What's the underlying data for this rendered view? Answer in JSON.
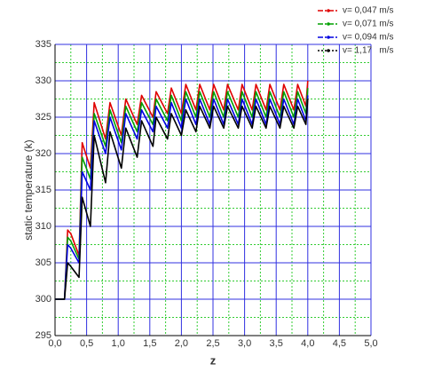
{
  "chart_data": {
    "type": "line",
    "ylabel": "static temperature (k)",
    "xlabel": "z",
    "x": [
      0,
      0.15,
      0.2,
      0.25,
      0.38,
      0.43,
      0.56,
      0.62,
      0.8,
      0.87,
      1.05,
      1.12,
      1.3,
      1.37,
      1.55,
      1.6,
      1.78,
      1.84,
      2.0,
      2.07,
      2.23,
      2.29,
      2.45,
      2.51,
      2.67,
      2.73,
      2.9,
      2.96,
      3.12,
      3.18,
      3.34,
      3.4,
      3.56,
      3.62,
      3.78,
      3.84,
      3.97,
      4.0
    ],
    "series": [
      {
        "name": "v= 0,047 m/s",
        "color": "#e00000",
        "values": [
          300,
          300,
          309.5,
          309,
          306,
          321.5,
          318,
          327,
          322,
          327,
          322.5,
          327.5,
          324,
          328,
          325,
          328.5,
          325.5,
          329,
          325.5,
          329.5,
          326,
          329.5,
          326,
          329.5,
          326,
          329.5,
          326,
          329.5,
          326,
          329.5,
          326,
          329.5,
          326,
          329.5,
          326,
          329.5,
          326.5,
          330
        ]
      },
      {
        "name": "v= 0,071 m/s",
        "color": "#00a000",
        "values": [
          300,
          300,
          308.5,
          308,
          305.5,
          319.5,
          316.5,
          325.5,
          321,
          326,
          321.5,
          326.5,
          323,
          327,
          324,
          327.5,
          324.5,
          328,
          324.5,
          328.5,
          325,
          328.5,
          325,
          328.5,
          325,
          328.5,
          325,
          328.5,
          325,
          328.5,
          325,
          328.5,
          325,
          328.5,
          325,
          328.5,
          325.5,
          329
        ]
      },
      {
        "name": "v= 0,094 m/s",
        "color": "#0000e0",
        "values": [
          300,
          300,
          307.5,
          307,
          305,
          317.5,
          315,
          324.5,
          320,
          325,
          320.5,
          325.5,
          322,
          326,
          323,
          326.5,
          323.5,
          327,
          323.5,
          327.5,
          324,
          327.5,
          324,
          327.5,
          324,
          327.5,
          324,
          327.5,
          324,
          327.5,
          324,
          327.5,
          324,
          327.5,
          324,
          327.5,
          324.5,
          328
        ]
      },
      {
        "name": "v= 1,17   m/s",
        "color": "#000000",
        "values": [
          300,
          300,
          305,
          304.5,
          303,
          314,
          310,
          322.5,
          316,
          323,
          318,
          323.5,
          319.5,
          324.5,
          321,
          325,
          322,
          325.5,
          322.5,
          326,
          323,
          326.5,
          323.5,
          326.5,
          323.5,
          326.5,
          323.5,
          326.5,
          323.5,
          326.5,
          323.5,
          326.5,
          323.5,
          326.5,
          323.5,
          326.5,
          324,
          327.5
        ]
      }
    ],
    "xlim": [
      0,
      5
    ],
    "xticks": [
      {
        "value": 0,
        "label": "0,0"
      },
      {
        "value": 0.5,
        "label": "0,5"
      },
      {
        "value": 1,
        "label": "1,0"
      },
      {
        "value": 1.5,
        "label": "1,5"
      },
      {
        "value": 2,
        "label": "2,0"
      },
      {
        "value": 2.5,
        "label": "2,5"
      },
      {
        "value": 3,
        "label": "3,0"
      },
      {
        "value": 3.5,
        "label": "3,5"
      },
      {
        "value": 4,
        "label": "4,0"
      },
      {
        "value": 4.5,
        "label": "4,5"
      },
      {
        "value": 5,
        "label": "5,0"
      }
    ],
    "ylim": [
      295,
      335
    ],
    "yticks": [
      295,
      300,
      305,
      310,
      315,
      320,
      325,
      330,
      335
    ],
    "grid": true,
    "legend": "top-right"
  }
}
